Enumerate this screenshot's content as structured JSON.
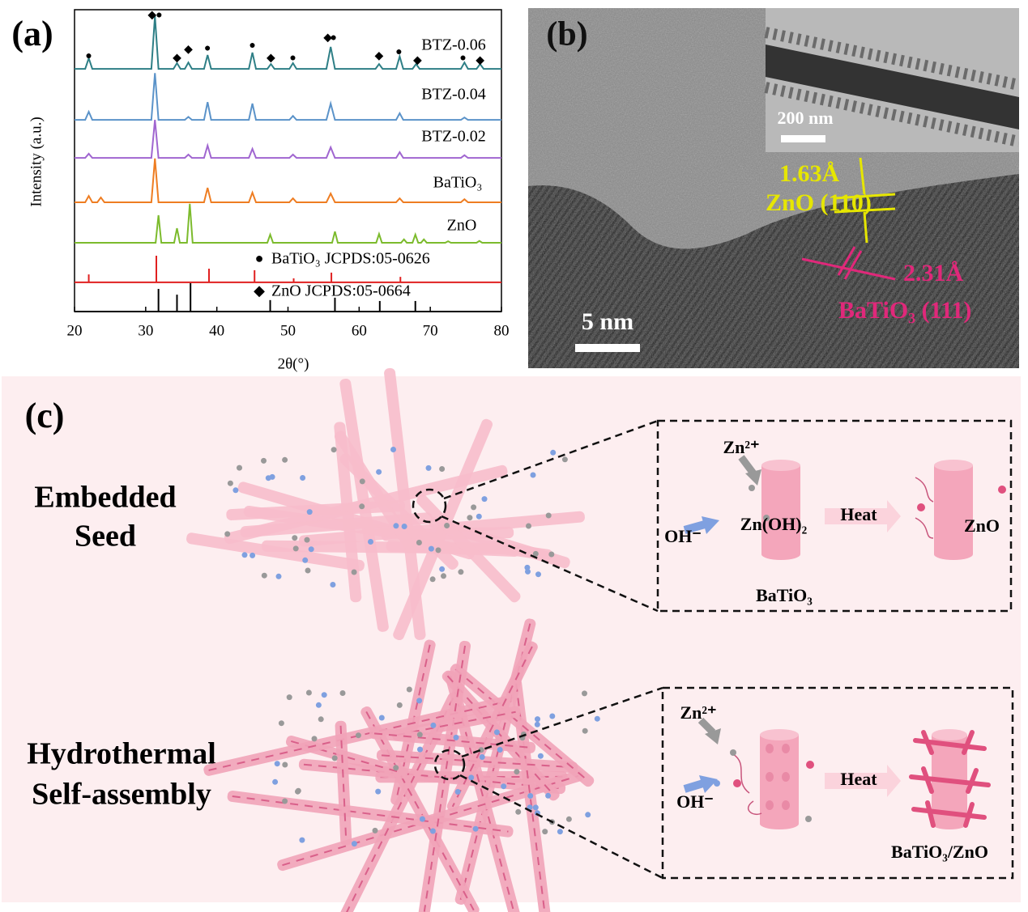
{
  "chart_data": {
    "type": "line",
    "panel_label": "(a)",
    "xlabel": "2θ(°)",
    "ylabel": "Intensity (a.u.)",
    "xlim": [
      20,
      80
    ],
    "xticks": [
      20,
      30,
      40,
      50,
      60,
      70,
      80
    ],
    "ylim": [
      0,
      100
    ],
    "series": [
      {
        "name": "BTZ-0.06",
        "color": "#2e7f86",
        "x": [
          20,
          21.5,
          22,
          22.5,
          30.8,
          31.3,
          31.8,
          33.9,
          34.4,
          34.9,
          35.5,
          36,
          36.5,
          38.2,
          38.7,
          39.2,
          44.5,
          45,
          45.5,
          47.1,
          47.6,
          48.1,
          50.2,
          50.7,
          51.2,
          55.4,
          56,
          56.6,
          62.3,
          62.8,
          63.3,
          65.2,
          65.7,
          66.2,
          67.5,
          68,
          68.5,
          74.3,
          74.8,
          75.3,
          76.5,
          77,
          77.5,
          80
        ],
        "values": [
          80.4,
          80.4,
          83.9,
          80.4,
          80.4,
          97.9,
          80.4,
          80.4,
          82.3,
          80.4,
          80.4,
          82.5,
          80.4,
          80.4,
          85,
          80.4,
          80.4,
          85.8,
          80.4,
          80.4,
          82,
          80.4,
          80.4,
          82.3,
          80.4,
          80.4,
          87.7,
          80.4,
          80.4,
          82,
          80.4,
          80.4,
          84.5,
          80.4,
          80.4,
          82,
          80.4,
          80.4,
          82.5,
          80.4,
          80.4,
          82,
          80.4,
          80.4
        ]
      },
      {
        "name": "BTZ-0.04",
        "color": "#5b93c9",
        "x": [
          20,
          21.5,
          22,
          22.5,
          30.8,
          31.3,
          31.8,
          35.5,
          36,
          36.5,
          38.2,
          38.7,
          39.2,
          44.5,
          45,
          45.5,
          50.2,
          50.7,
          51.2,
          55.4,
          56,
          56.6,
          65.2,
          65.7,
          66.2,
          74.3,
          74.8,
          75.3,
          80
        ],
        "values": [
          63.5,
          63.5,
          66.2,
          63.5,
          63.5,
          79,
          63.5,
          63.5,
          64.5,
          63.5,
          63.5,
          69.4,
          63.5,
          63.5,
          68.9,
          63.5,
          63.5,
          64.8,
          63.5,
          63.5,
          68.9,
          63.5,
          63.5,
          65.7,
          63.5,
          63.5,
          64.3,
          63.5,
          63.5
        ]
      },
      {
        "name": "BTZ-0.02",
        "color": "#a066d0",
        "x": [
          20,
          21.5,
          22,
          22.5,
          30.8,
          31.3,
          31.8,
          35.5,
          36,
          36.5,
          38.2,
          38.7,
          39.2,
          44.5,
          45,
          45.5,
          50.2,
          50.7,
          51.2,
          55.4,
          56,
          56.6,
          65.2,
          65.7,
          66.2,
          74.3,
          74.8,
          75.3,
          80
        ],
        "values": [
          50.9,
          50.9,
          52.3,
          50.9,
          50.9,
          63.5,
          50.9,
          50.9,
          52,
          50.9,
          50.9,
          55,
          50.9,
          50.9,
          53.9,
          50.9,
          50.9,
          52,
          50.9,
          50.9,
          54.4,
          50.9,
          50.9,
          52.8,
          50.9,
          50.9,
          51.8,
          50.9,
          50.9
        ]
      },
      {
        "name": "BaTiO₃",
        "color": "#ee7d22",
        "x": [
          20,
          21.5,
          22,
          22.5,
          23.2,
          23.7,
          24.2,
          30.8,
          31.3,
          31.8,
          38.2,
          38.7,
          39.2,
          44.5,
          45,
          45.5,
          50.2,
          50.7,
          51.2,
          55.4,
          56,
          56.6,
          65.2,
          65.7,
          66.2,
          74.3,
          74.8,
          75.3,
          80
        ],
        "values": [
          36.2,
          36.2,
          38.3,
          36.2,
          36.2,
          37.8,
          36.2,
          36.2,
          50.7,
          36.2,
          36.2,
          41,
          36.2,
          36.2,
          39.4,
          36.2,
          36.2,
          37.5,
          36.2,
          36.2,
          39.1,
          36.2,
          36.2,
          37.5,
          36.2,
          36.2,
          37.2,
          36.2,
          36.2
        ]
      },
      {
        "name": "ZnO",
        "color": "#7cbb2d",
        "x": [
          20,
          31.4,
          31.8,
          32.2,
          34,
          34.4,
          34.8,
          35.8,
          36.2,
          36.6,
          47.1,
          47.5,
          47.9,
          56.2,
          56.6,
          57,
          62.4,
          62.8,
          63.2,
          65.9,
          66.3,
          66.7,
          67.5,
          67.9,
          68.3,
          68.7,
          69.1,
          69.5,
          72.1,
          72.5,
          72.9,
          76.5,
          76.9,
          77.3,
          80
        ],
        "values": [
          22.8,
          22.8,
          31.9,
          22.8,
          22.8,
          27.6,
          22.8,
          22.8,
          35.7,
          22.8,
          22.8,
          25.5,
          22.8,
          22.8,
          26.5,
          22.8,
          22.8,
          25.7,
          22.8,
          22.8,
          23.9,
          22.8,
          22.8,
          25.5,
          22.8,
          22.8,
          23.9,
          22.8,
          22.8,
          23.3,
          22.8,
          22.8,
          23.4,
          22.8,
          22.8
        ]
      },
      {
        "name": "BaTiO₃  JCPDS:05-0626",
        "symbol": "●",
        "style": "stick",
        "color": "#e02020",
        "base": 9.7,
        "x": [
          22,
          31.5,
          38.9,
          45.3,
          50.8,
          56.1,
          65.8
        ],
        "values": [
          12.3,
          18.5,
          14.2,
          13.7,
          11,
          12.9,
          11.5
        ]
      },
      {
        "name": "ZnO  JCPDS:05-0664",
        "symbol": "◆",
        "style": "stick",
        "color": "#000000",
        "base": 0,
        "x": [
          31.8,
          34.4,
          36.3,
          47.5,
          56.6,
          62.9,
          67.9
        ],
        "values": [
          7.5,
          5.6,
          9.4,
          3.8,
          4.6,
          3.5,
          3.5
        ]
      }
    ],
    "markers": [
      {
        "x": 22,
        "y": 84.5,
        "symbol": "●"
      },
      {
        "x": 30.9,
        "y": 98,
        "symbol": "◆"
      },
      {
        "x": 31.9,
        "y": 98,
        "symbol": "●"
      },
      {
        "x": 34.4,
        "y": 83.9,
        "symbol": "◆"
      },
      {
        "x": 36,
        "y": 86.6,
        "symbol": "◆"
      },
      {
        "x": 38.7,
        "y": 87.1,
        "symbol": "●"
      },
      {
        "x": 45,
        "y": 88,
        "symbol": "●"
      },
      {
        "x": 47.6,
        "y": 83.9,
        "symbol": "◆"
      },
      {
        "x": 50.7,
        "y": 83.9,
        "symbol": "●"
      },
      {
        "x": 55.6,
        "y": 90.6,
        "symbol": "◆"
      },
      {
        "x": 56.4,
        "y": 90.6,
        "symbol": "●"
      },
      {
        "x": 62.8,
        "y": 84.5,
        "symbol": "◆"
      },
      {
        "x": 65.6,
        "y": 85.8,
        "symbol": "●"
      },
      {
        "x": 68.2,
        "y": 83.1,
        "symbol": "◆"
      },
      {
        "x": 74.6,
        "y": 83.9,
        "symbol": "●"
      },
      {
        "x": 77,
        "y": 83.1,
        "symbol": "◆"
      }
    ]
  },
  "panel_b": {
    "label": "(b)",
    "inset_scale": "200 nm",
    "scale": "5 nm",
    "fringe_1": {
      "spacing": "1.63Å",
      "plane": "ZnO (110)"
    },
    "fringe_2": {
      "spacing": "2.31Å",
      "plane": "BaTiO₃ (111)"
    }
  },
  "panel_c": {
    "label": "(c)",
    "rows": [
      {
        "title": [
          "Embedded",
          "Seed"
        ],
        "zn": "Zn²⁺",
        "oh": "OH⁻",
        "intermediate": "Zn(OH)₂",
        "heat": "Heat",
        "product": "ZnO",
        "substrate": "BaTiO₃"
      },
      {
        "title": [
          "Hydrothermal",
          "Self-assembly"
        ],
        "zn": "Zn²⁺",
        "oh": "OH⁻",
        "heat": "Heat",
        "product": "BaTiO₃/ZnO"
      }
    ]
  }
}
